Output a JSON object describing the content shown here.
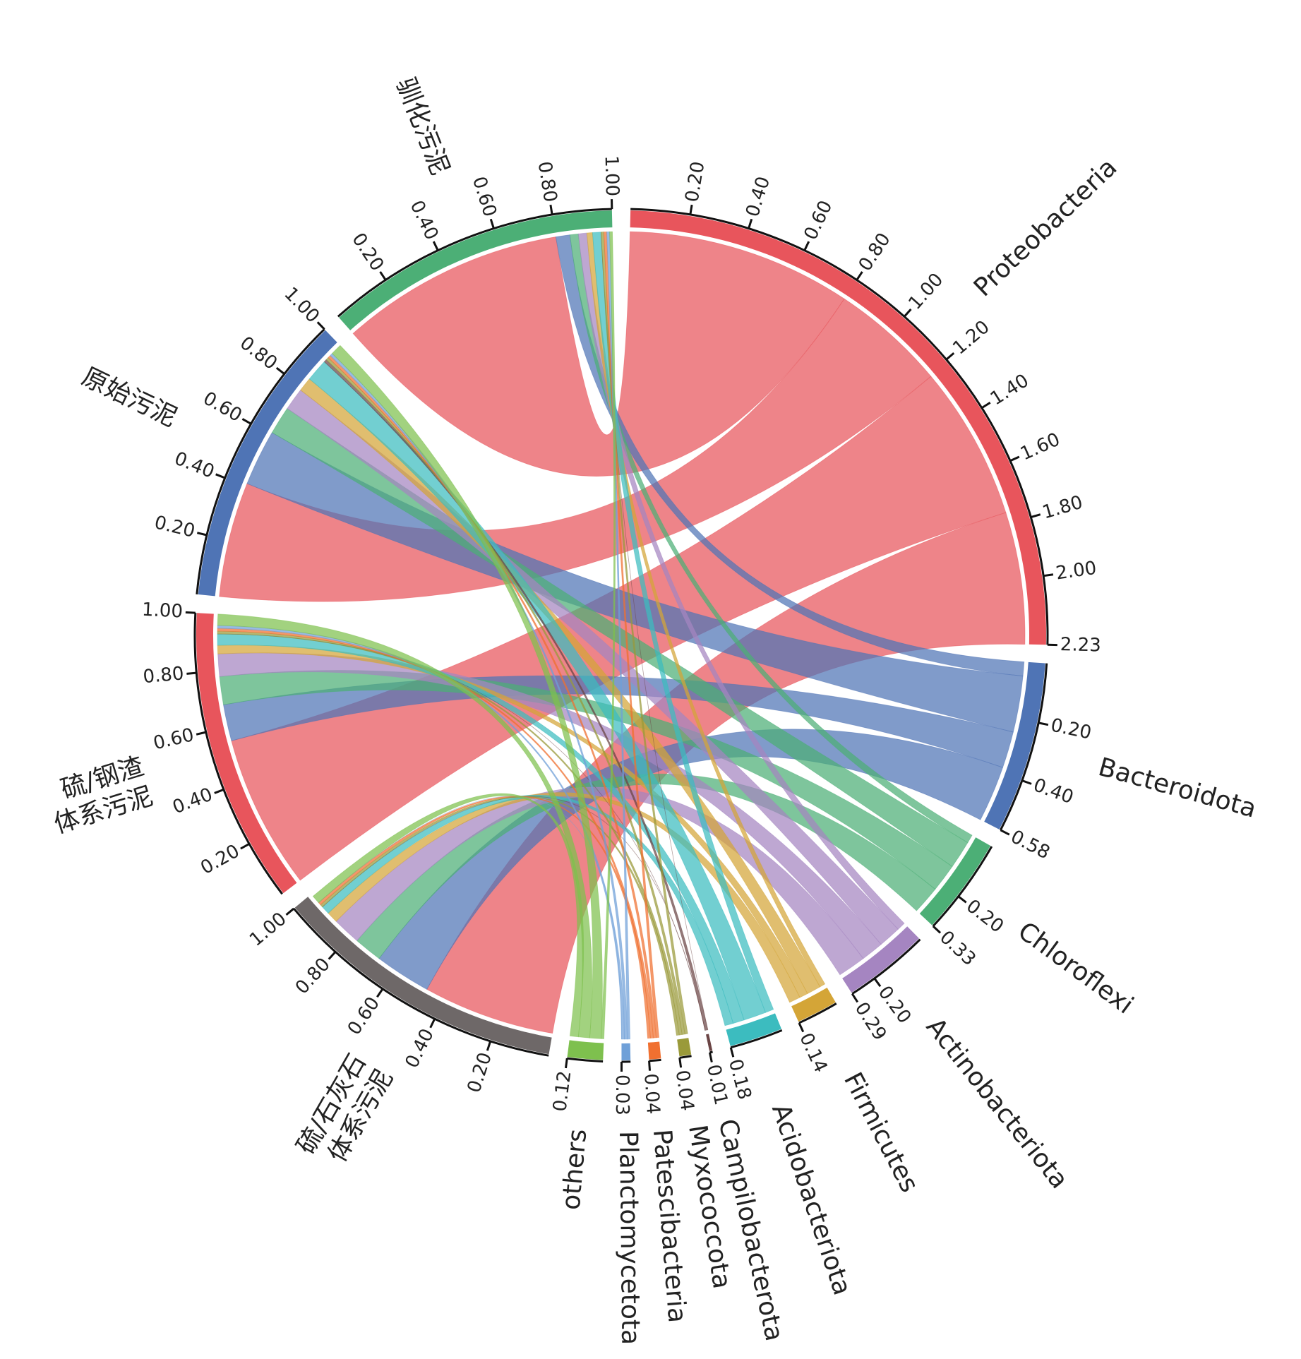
{
  "chart_data": {
    "type": "chord",
    "phyla": [
      {
        "label": [
          "Proteobacteria"
        ],
        "color": "#e8555c",
        "ticks": [
          {
            "value": 0.2,
            "label": "0.20"
          },
          {
            "value": 0.4,
            "label": "0.40"
          },
          {
            "value": 0.6,
            "label": "0.60"
          },
          {
            "value": 0.8,
            "label": "0.80"
          },
          {
            "value": 1.0,
            "label": "1.00"
          },
          {
            "value": 1.2,
            "label": "1.20"
          },
          {
            "value": 1.4,
            "label": "1.40"
          },
          {
            "value": 1.6,
            "label": "1.60"
          },
          {
            "value": 1.8,
            "label": "1.80"
          },
          {
            "value": 2.0,
            "label": "2.00"
          },
          {
            "value": 2.23,
            "label": "2.23"
          }
        ]
      },
      {
        "label": [
          "Bacteroidota"
        ],
        "color": "#4f74b5",
        "ticks": [
          {
            "value": 0.2,
            "label": "0.20"
          },
          {
            "value": 0.4,
            "label": "0.40"
          },
          {
            "value": 0.58,
            "label": "0.58"
          }
        ]
      },
      {
        "label": [
          "Chloroflexi"
        ],
        "color": "#4caf76",
        "ticks": [
          {
            "value": 0.2,
            "label": "0.20"
          },
          {
            "value": 0.33,
            "label": "0.33"
          }
        ]
      },
      {
        "label": [
          "Actinobacteriota"
        ],
        "color": "#a585c1",
        "ticks": [
          {
            "value": 0.2,
            "label": "0.20"
          },
          {
            "value": 0.29,
            "label": "0.29"
          }
        ]
      },
      {
        "label": [
          "Firmicutes"
        ],
        "color": "#d4a537",
        "ticks": [
          {
            "value": 0.14,
            "label": "0.14"
          }
        ]
      },
      {
        "label": [
          "Acidobacteriota"
        ],
        "color": "#3cbcbf",
        "ticks": [
          {
            "value": 0.18,
            "label": "0.18"
          }
        ]
      },
      {
        "label": [
          "Campilobacterota"
        ],
        "color": "#6b4545",
        "ticks": [
          {
            "value": 0.01,
            "label": "0.01"
          }
        ]
      },
      {
        "label": [
          "Myxococcota"
        ],
        "color": "#9a9a3a",
        "ticks": [
          {
            "value": 0.04,
            "label": "0.04"
          }
        ]
      },
      {
        "label": [
          "Patescibacteria"
        ],
        "color": "#f07030",
        "ticks": [
          {
            "value": 0.04,
            "label": "0.04"
          }
        ]
      },
      {
        "label": [
          "Planctomycetota"
        ],
        "color": "#6fa0d8",
        "ticks": [
          {
            "value": 0.03,
            "label": "0.03"
          }
        ]
      },
      {
        "label": [
          "others"
        ],
        "color": "#7ec04e",
        "ticks": [
          {
            "value": 0.12,
            "label": "0.12"
          }
        ]
      }
    ],
    "samples": [
      {
        "label": [
          "硫/石灰石",
          "体系污泥"
        ],
        "color": "#6e6868",
        "ticks": [
          {
            "value": 0.2,
            "label": "0.20"
          },
          {
            "value": 0.4,
            "label": "0.40"
          },
          {
            "value": 0.6,
            "label": "0.60"
          },
          {
            "value": 0.8,
            "label": "0.80"
          },
          {
            "value": 1.0,
            "label": "1.00"
          }
        ]
      },
      {
        "label": [
          "硫/钢渣",
          "体系污泥"
        ],
        "color": "#e8555c",
        "ticks": [
          {
            "value": 0.2,
            "label": "0.20"
          },
          {
            "value": 0.4,
            "label": "0.40"
          },
          {
            "value": 0.6,
            "label": "0.60"
          },
          {
            "value": 0.8,
            "label": "0.80"
          },
          {
            "value": 1.0,
            "label": "1.00"
          }
        ]
      },
      {
        "label": [
          "原始污泥"
        ],
        "color": "#4f74b5",
        "ticks": [
          {
            "value": 0.2,
            "label": "0.20"
          },
          {
            "value": 0.4,
            "label": "0.40"
          },
          {
            "value": 0.6,
            "label": "0.60"
          },
          {
            "value": 0.8,
            "label": "0.80"
          },
          {
            "value": 1.0,
            "label": "1.00"
          }
        ]
      },
      {
        "label": [
          "驯化污泥"
        ],
        "color": "#4caf76",
        "ticks": [
          {
            "value": 0.2,
            "label": "0.20"
          },
          {
            "value": 0.4,
            "label": "0.40"
          },
          {
            "value": 0.6,
            "label": "0.60"
          },
          {
            "value": 0.8,
            "label": "0.80"
          },
          {
            "value": 1.0,
            "label": "1.00"
          }
        ]
      }
    ],
    "flows": [
      [
        0.47,
        0.2,
        0.1,
        0.1,
        0.04,
        0.03,
        0,
        0.01,
        0.01,
        0,
        0.03
      ],
      [
        0.55,
        0.13,
        0.1,
        0.08,
        0.03,
        0.04,
        0,
        0.01,
        0.01,
        0.01,
        0.04
      ],
      [
        0.41,
        0.2,
        0.1,
        0.08,
        0.05,
        0.08,
        0.01,
        0.01,
        0.01,
        0.01,
        0.04
      ],
      [
        0.8,
        0.05,
        0.03,
        0.03,
        0.02,
        0.03,
        0,
        0.01,
        0.01,
        0.01,
        0.01
      ]
    ]
  }
}
